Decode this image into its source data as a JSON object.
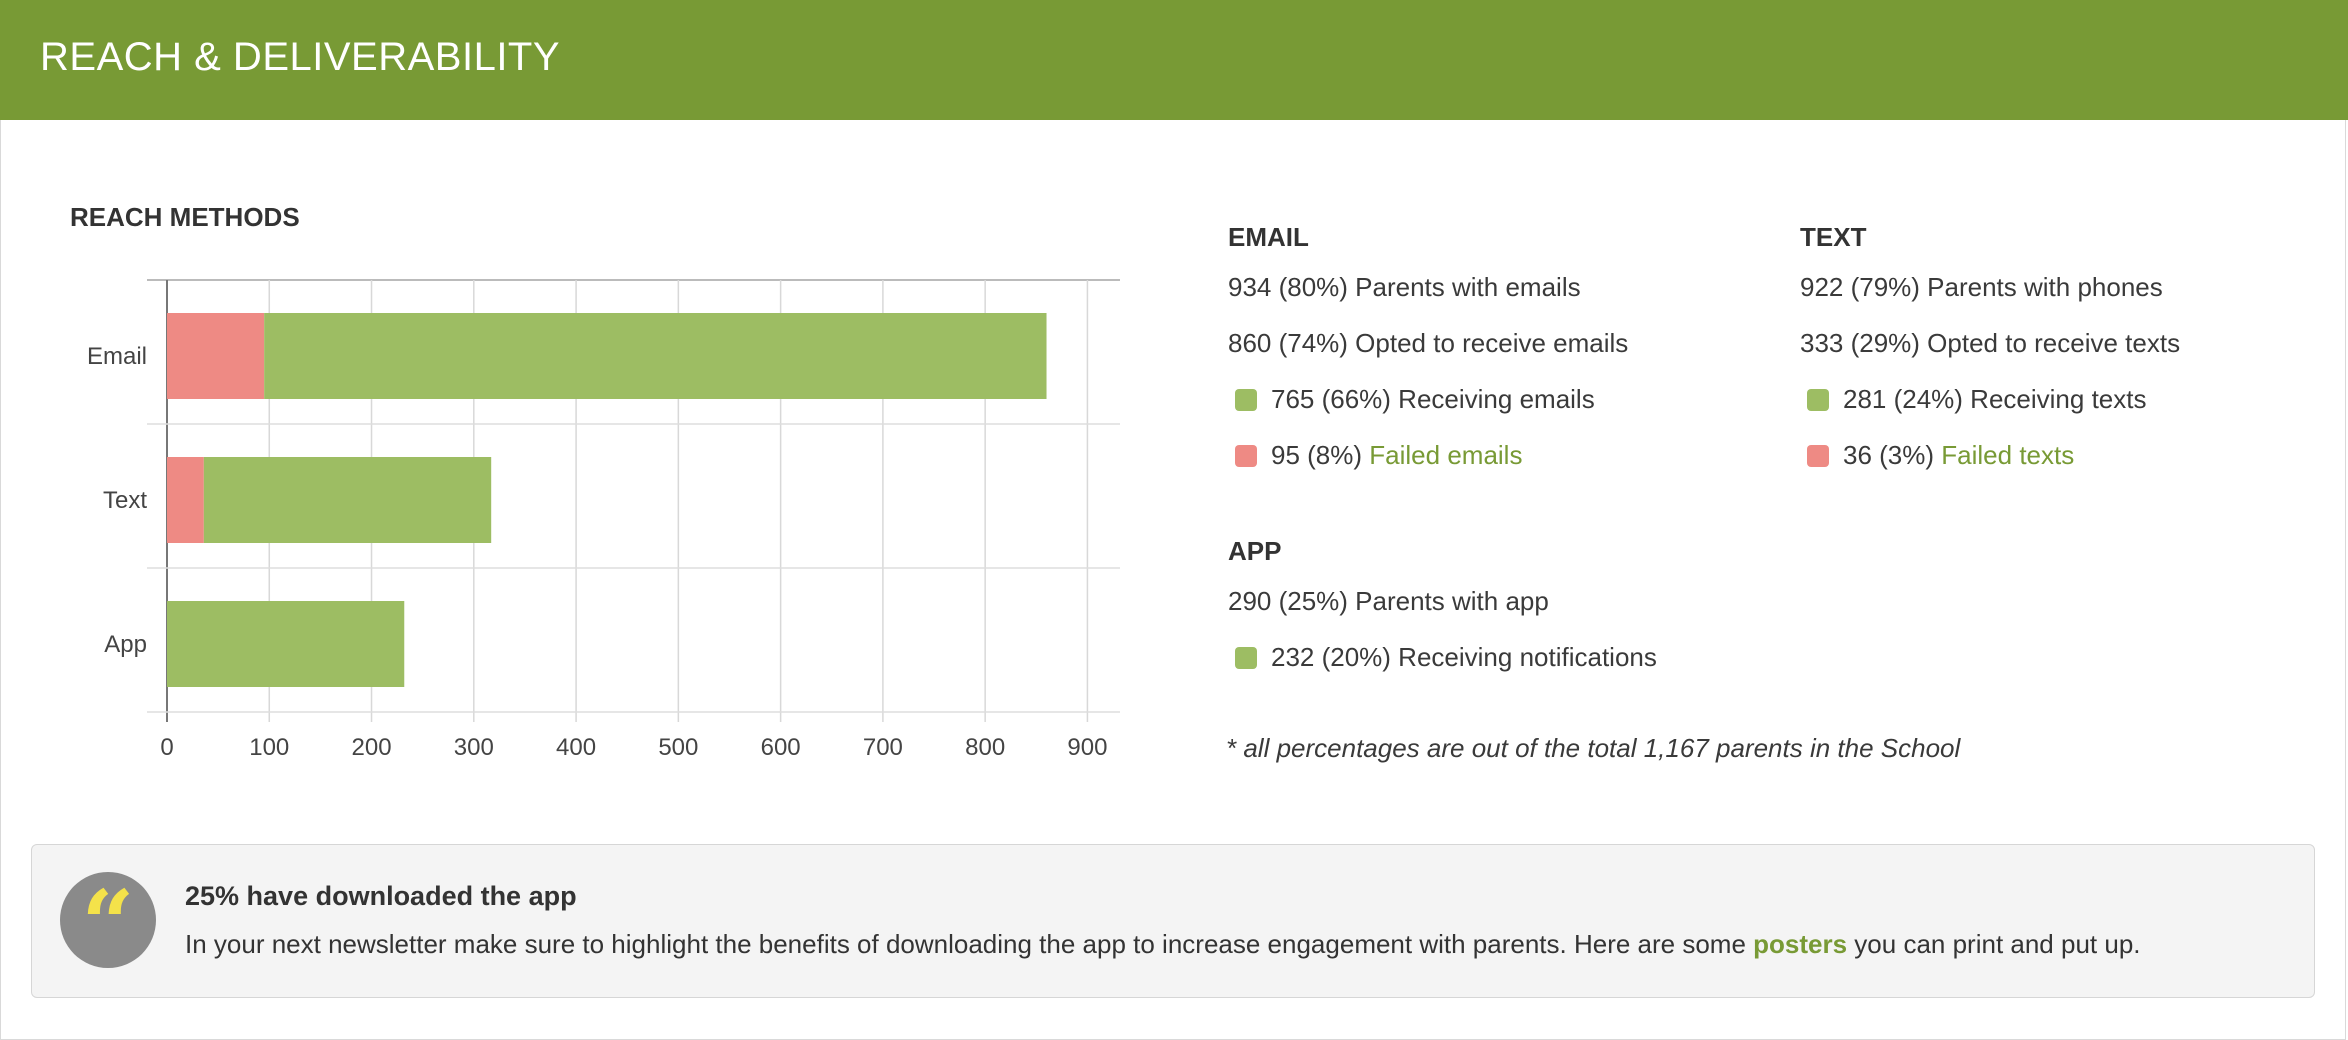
{
  "header": {
    "title": "REACH & DELIVERABILITY"
  },
  "chart_title": "REACH METHODS",
  "chart_data": {
    "type": "bar",
    "orientation": "horizontal",
    "stacked": true,
    "categories": [
      "Email",
      "Text",
      "App"
    ],
    "series": [
      {
        "name": "Failed",
        "values": [
          95,
          36,
          0
        ],
        "color": "#ee8a84"
      },
      {
        "name": "Receiving",
        "values": [
          765,
          281,
          232
        ],
        "color": "#9dbd63"
      }
    ],
    "xlim": [
      0,
      920
    ],
    "xticks": [
      0,
      100,
      200,
      300,
      400,
      500,
      600,
      700,
      800,
      900
    ],
    "grid": true
  },
  "email": {
    "title": "EMAIL",
    "with": "934 (80%) Parents with emails",
    "opted": "860 (74%) Opted to receive emails",
    "receiving": "765 (66%) Receiving emails",
    "failed_count": "95 (8%)",
    "failed_link": "Failed emails"
  },
  "text": {
    "title": "TEXT",
    "with": "922 (79%) Parents with phones",
    "opted": "333 (29%) Opted to receive texts",
    "receiving": "281 (24%) Receiving texts",
    "failed_count": "36 (3%)",
    "failed_link": "Failed texts"
  },
  "app": {
    "title": "APP",
    "with": "290 (25%) Parents with app",
    "receiving": "232 (20%) Receiving notifications"
  },
  "footnote": "* all percentages are out of the total 1,167 parents in the School",
  "callout": {
    "title": "25% have downloaded the app",
    "text_before": "In your next newsletter make sure to highlight the benefits of downloading the app to increase engagement with parents. Here are some ",
    "link": "posters",
    "text_after": " you can print and put up."
  },
  "colors": {
    "brand": "#789a35",
    "receiving": "#9dbd63",
    "failed": "#ee8a84"
  }
}
